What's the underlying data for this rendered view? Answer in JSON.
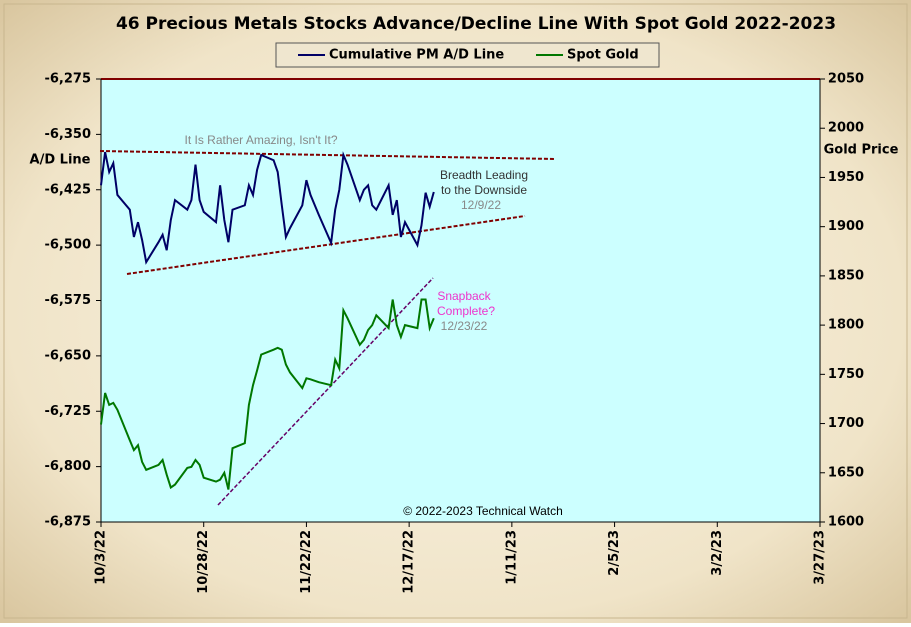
{
  "chart_data": {
    "type": "line",
    "title": "46 Precious Metals Stocks Advance/Decline  Line With Spot Gold 2022-2023",
    "y_label": "A/D Line",
    "y2_label": "Gold Price",
    "source": "© 2022-2023  Technical Watch",
    "annotations": [
      "It Is Rather Amazing, Isn't It?",
      "Breadth Leading",
      "to the Downside",
      "12/9/22",
      "Snapback",
      "Complete?",
      "12/23/22"
    ],
    "x": [
      "2022-10-03",
      "2022-10-04",
      "2022-10-05",
      "2022-10-06",
      "2022-10-07",
      "2022-10-10",
      "2022-10-11",
      "2022-10-12",
      "2022-10-13",
      "2022-10-14",
      "2022-10-17",
      "2022-10-18",
      "2022-10-19",
      "2022-10-20",
      "2022-10-21",
      "2022-10-24",
      "2022-10-25",
      "2022-10-26",
      "2022-10-27",
      "2022-10-28",
      "2022-10-31",
      "2022-11-01",
      "2022-11-02",
      "2022-11-03",
      "2022-11-04",
      "2022-11-07",
      "2022-11-08",
      "2022-11-09",
      "2022-11-10",
      "2022-11-11",
      "2022-11-14",
      "2022-11-15",
      "2022-11-16",
      "2022-11-17",
      "2022-11-18",
      "2022-11-21",
      "2022-11-22",
      "2022-11-23",
      "2022-11-25",
      "2022-11-28",
      "2022-11-29",
      "2022-11-30",
      "2022-12-01",
      "2022-12-02",
      "2022-12-05",
      "2022-12-06",
      "2022-12-07",
      "2022-12-08",
      "2022-12-09",
      "2022-12-12",
      "2022-12-13",
      "2022-12-14",
      "2022-12-15",
      "2022-12-16",
      "2022-12-19",
      "2022-12-20",
      "2022-12-21",
      "2022-12-22",
      "2022-12-23"
    ],
    "series": [
      {
        "name": "Cumulative PM A/D Line",
        "color": "#000066",
        "values": [
          -6419,
          -6374,
          -6401,
          -6389,
          -6432,
          -6452,
          -6489,
          -6469,
          -6493,
          -6523,
          -6496,
          -6486,
          -6507,
          -6466,
          -6439,
          -6452,
          -6439,
          -6391,
          -6439,
          -6455,
          -6469,
          -6419,
          -6466,
          -6496,
          -6452,
          -6446,
          -6419,
          -6432,
          -6398,
          -6378,
          -6385,
          -6401,
          -6446,
          -6489,
          -6477,
          -6446,
          -6412,
          -6432,
          -6459,
          -6497,
          -6452,
          -6425,
          -6378,
          -6391,
          -6439,
          -6425,
          -6419,
          -6446,
          -6452,
          -6419,
          -6459,
          -6439,
          -6489,
          -6469,
          -6500,
          -6473,
          -6429,
          -6448,
          -6428
        ]
      },
      {
        "name": "Spot Gold",
        "color": "#007700",
        "axis": "y2",
        "values": [
          1699,
          1731,
          1719,
          1721,
          1714,
          1683,
          1673,
          1678,
          1661,
          1653,
          1658,
          1663,
          1648,
          1635,
          1638,
          1655,
          1656,
          1663,
          1658,
          1645,
          1641,
          1643,
          1650,
          1633,
          1675,
          1680,
          1719,
          1739,
          1754,
          1770,
          1775,
          1777,
          1775,
          1760,
          1752,
          1736,
          1746,
          1745,
          1742,
          1739,
          1765,
          1756,
          1815,
          1807,
          1780,
          1785,
          1795,
          1800,
          1810,
          1797,
          1826,
          1800,
          1788,
          1800,
          1797,
          1826,
          1826,
          1797,
          1807
        ]
      }
    ],
    "xlim": [
      "2022-10-03",
      "2023-03-27"
    ],
    "xticks": [
      {
        "value": "2022-10-03",
        "label": "10/3/22"
      },
      {
        "value": "2022-10-28",
        "label": "10/28/22"
      },
      {
        "value": "2022-11-22",
        "label": "11/22/22"
      },
      {
        "value": "2022-12-17",
        "label": "12/17/22"
      },
      {
        "value": "2023-01-11",
        "label": "1/11/23"
      },
      {
        "value": "2023-02-05",
        "label": "2/5/23"
      },
      {
        "value": "2023-03-02",
        "label": "3/2/23"
      },
      {
        "value": "2023-03-27",
        "label": "3/27/23"
      }
    ],
    "ylim": [
      -6875,
      -6275
    ],
    "yticks": [
      {
        "value": -6275,
        "label": "-6,275"
      },
      {
        "value": -6350,
        "label": "-6,350"
      },
      {
        "value": -6425,
        "label": "-6,425"
      },
      {
        "value": -6500,
        "label": "-6,500"
      },
      {
        "value": -6575,
        "label": "-6,575"
      },
      {
        "value": -6650,
        "label": "-6,650"
      },
      {
        "value": -6725,
        "label": "-6,725"
      },
      {
        "value": -6800,
        "label": "-6,800"
      },
      {
        "value": -6875,
        "label": "-6,875"
      }
    ],
    "y2lim": [
      1600,
      2050
    ],
    "y2ticks": [
      1600,
      1650,
      1700,
      1750,
      1800,
      1850,
      1900,
      1950,
      2000,
      2050
    ],
    "grid": false
  }
}
